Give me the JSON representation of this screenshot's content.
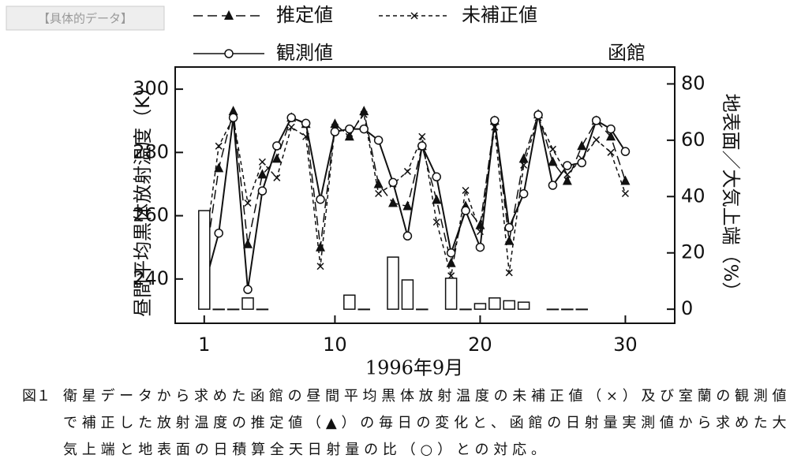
{
  "header": {
    "label": "【具体的データ】"
  },
  "chart_data": {
    "type": "line",
    "location": "函館",
    "xlabel": "1996年9月",
    "ylabel": "昼間平均黒体放射温度（K）",
    "y2label": "地表面／大気上端（%）",
    "x": [
      1,
      2,
      3,
      4,
      5,
      6,
      7,
      8,
      9,
      10,
      11,
      12,
      13,
      14,
      15,
      16,
      17,
      18,
      19,
      20,
      21,
      22,
      23,
      24,
      25,
      26,
      27,
      28,
      29,
      30
    ],
    "xlim": [
      -1,
      33.4
    ],
    "xticks": [
      1,
      10,
      20,
      30
    ],
    "ylim": [
      226,
      307
    ],
    "yticks": [
      240,
      260,
      280,
      300
    ],
    "y2lim": [
      -5,
      86
    ],
    "y2ticks": [
      0,
      20,
      40,
      60,
      80
    ],
    "series": [
      {
        "name": "推定値",
        "color": "#111",
        "line_style": "dashed",
        "marker": "triangle",
        "values": [
          243,
          275,
          293,
          251,
          273,
          278,
          291,
          289,
          250,
          289,
          285,
          293,
          270,
          264,
          263,
          282,
          265,
          245,
          263,
          257,
          290,
          252,
          278,
          292,
          277,
          271,
          282,
          290,
          285,
          271
        ]
      },
      {
        "name": "未補正値",
        "color": "#111",
        "line_style": "dotted",
        "marker": "x",
        "values": [
          248,
          282,
          291,
          264,
          277,
          272,
          288,
          285,
          244,
          288,
          286,
          292,
          267,
          270,
          274,
          285,
          258,
          241,
          268,
          255,
          288,
          242,
          276,
          291,
          281,
          273,
          278,
          284,
          280,
          267
        ]
      },
      {
        "name": "観測値",
        "color": "#111",
        "line_style": "solid",
        "marker": "circle",
        "axis": "y2",
        "values": [
          8,
          27,
          68,
          7,
          42,
          58,
          68,
          66,
          39,
          63,
          64,
          64,
          60,
          45,
          26,
          58,
          47,
          20,
          35,
          22,
          67,
          29,
          41,
          69,
          44,
          51,
          52,
          67,
          64,
          56
        ]
      },
      {
        "type": "bar",
        "color": "#111",
        "axis": "y2",
        "values": [
          35,
          0,
          0,
          4,
          0,
          null,
          null,
          null,
          null,
          null,
          5,
          0,
          null,
          18.5,
          10.4,
          0,
          null,
          11,
          0,
          2,
          4,
          3,
          2.5,
          null,
          0,
          0,
          0,
          null,
          null,
          null
        ]
      }
    ]
  },
  "caption": {
    "label": "図１",
    "lines": [
      "衛星データから求めた函館の昼間平均黒体放射温度の未補正値（×）及び室蘭の観測値",
      "で補正した放射温度の推定値（▲）の毎日の変化と、函館の日射量実測値から求めた大",
      "気上端と地表面の日積算全天日射量の比（○）との対応。"
    ]
  }
}
